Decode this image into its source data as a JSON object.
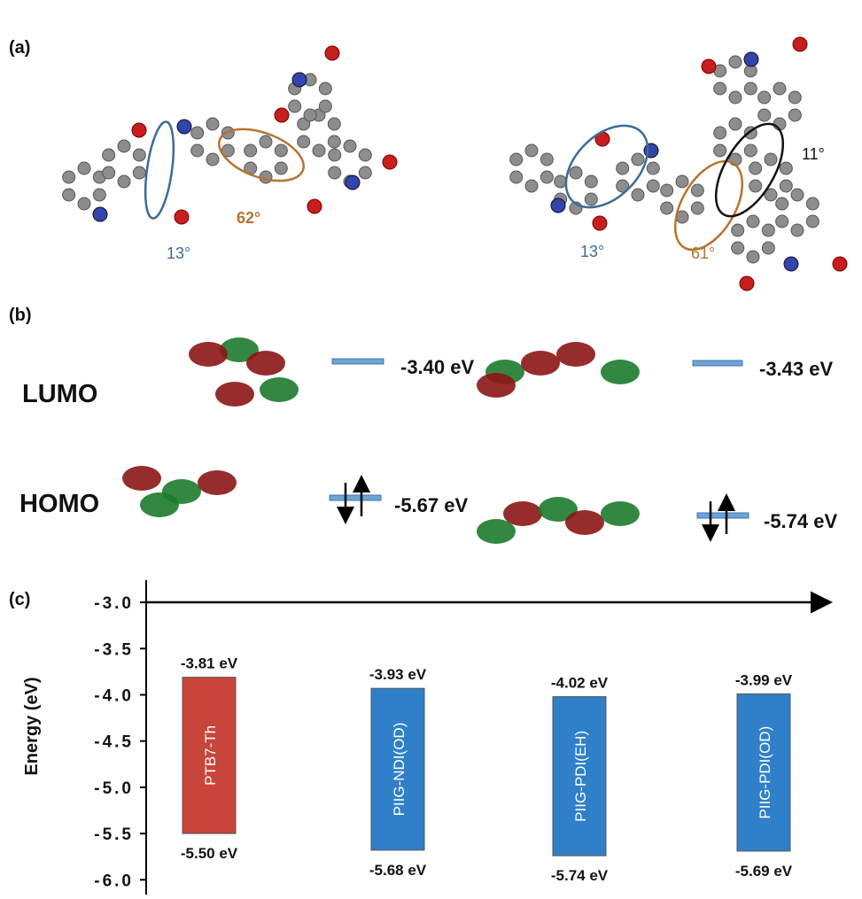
{
  "panel_a": {
    "label": "(a)",
    "angles": [
      "13°",
      "62°",
      "13°",
      "61°",
      "11°"
    ]
  },
  "panel_b": {
    "label": "(b)",
    "lumo": "LUMO",
    "homo": "HOMO",
    "energies": [
      "-3.40 eV",
      "-3.43 eV",
      "-5.67 eV",
      "-5.74 eV"
    ]
  },
  "panel_c": {
    "label": "(c)"
  },
  "chart_data": {
    "type": "floating-bar",
    "ylabel": "Energy (eV)",
    "categories": [
      "PTB7-Th",
      "PIIG-NDI(OD)",
      "PIIG-PDI(EH)",
      "PIIG-PDI(OD)"
    ],
    "lumo": [
      -3.81,
      -3.93,
      -4.02,
      -3.99
    ],
    "homo": [
      -5.5,
      -5.68,
      -5.74,
      -5.69
    ],
    "lumo_labels": [
      "-3.81 eV",
      "-3.93 eV",
      "-4.02 eV",
      "-3.99 eV"
    ],
    "homo_labels": [
      "-5.50 eV",
      "-5.68 eV",
      "-5.74 eV",
      "-5.69 eV"
    ],
    "colors": [
      "#c9443a",
      "#2f80c8",
      "#2f80c8",
      "#2f80c8"
    ],
    "ylim": [
      -6.16,
      -2.76
    ],
    "yticks": [
      {
        "value": -3,
        "label": "-3.0"
      },
      -3.5,
      {
        "value": -4,
        "label": "-4.0"
      },
      -4.5,
      {
        "value": -5,
        "label": "-5.0"
      },
      -5.5,
      {
        "value": -6,
        "label": "-6.0"
      }
    ]
  }
}
